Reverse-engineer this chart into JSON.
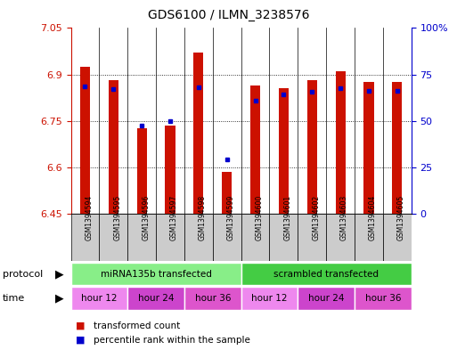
{
  "title": "GDS6100 / ILMN_3238576",
  "samples": [
    "GSM1394594",
    "GSM1394595",
    "GSM1394596",
    "GSM1394597",
    "GSM1394598",
    "GSM1394599",
    "GSM1394600",
    "GSM1394601",
    "GSM1394602",
    "GSM1394603",
    "GSM1394604",
    "GSM1394605"
  ],
  "red_values": [
    6.925,
    6.88,
    6.725,
    6.735,
    6.97,
    6.585,
    6.865,
    6.855,
    6.88,
    6.91,
    6.875,
    6.875
  ],
  "blue_values": [
    6.862,
    6.852,
    6.735,
    6.748,
    6.858,
    6.625,
    6.815,
    6.835,
    6.843,
    6.855,
    6.847,
    6.847
  ],
  "ymin": 6.45,
  "ymax": 7.05,
  "yticks_red": [
    6.45,
    6.6,
    6.75,
    6.9,
    7.05
  ],
  "ytick_blue_vals": [
    0,
    25,
    50,
    75,
    100
  ],
  "ytick_blue_labels": [
    "0",
    "25",
    "50",
    "75",
    "100%"
  ],
  "bar_color": "#cc1100",
  "dot_color": "#0000cc",
  "sample_bg_color": "#cccccc",
  "protocol_groups": [
    {
      "label": "miRNA135b transfected",
      "start": 0,
      "end": 6,
      "color": "#88ee88"
    },
    {
      "label": "scrambled transfected",
      "start": 6,
      "end": 12,
      "color": "#44cc44"
    }
  ],
  "time_groups": [
    {
      "label": "hour 12",
      "start": 0,
      "end": 2,
      "color": "#ee88ee"
    },
    {
      "label": "hour 24",
      "start": 2,
      "end": 4,
      "color": "#cc44cc"
    },
    {
      "label": "hour 36",
      "start": 4,
      "end": 6,
      "color": "#dd55cc"
    },
    {
      "label": "hour 12",
      "start": 6,
      "end": 8,
      "color": "#ee88ee"
    },
    {
      "label": "hour 24",
      "start": 8,
      "end": 10,
      "color": "#cc44cc"
    },
    {
      "label": "hour 36",
      "start": 10,
      "end": 12,
      "color": "#dd55cc"
    }
  ],
  "legend_items": [
    {
      "label": "transformed count",
      "color": "#cc1100"
    },
    {
      "label": "percentile rank within the sample",
      "color": "#0000cc"
    }
  ],
  "background_color": "#ffffff",
  "bar_width": 0.35,
  "title_fontsize": 10
}
